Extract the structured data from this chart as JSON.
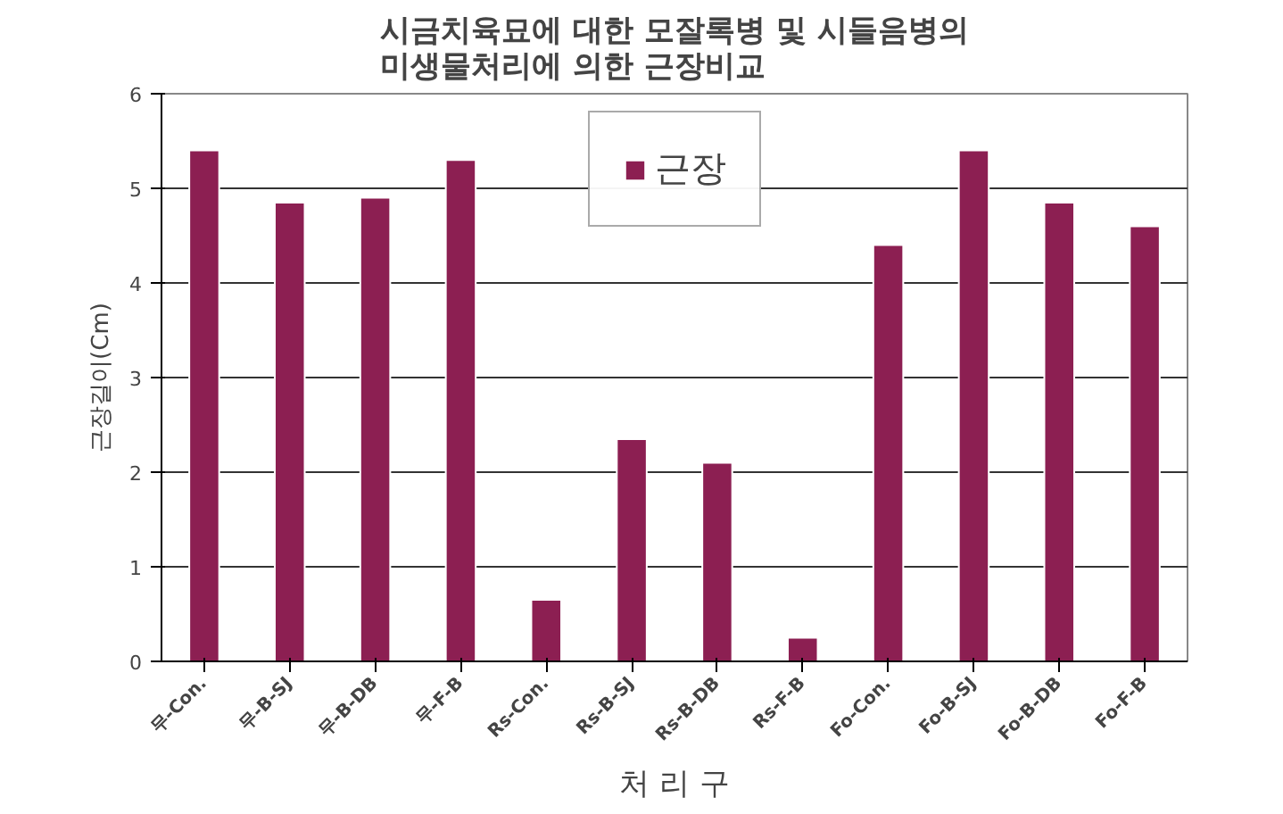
{
  "chart_data": {
    "type": "bar",
    "title": "시금치육묘에 대한 모잘록병 및 시들음병의\n미생물처리에 의한 근장비교",
    "xlabel": "처 리 구",
    "ylabel": "근장길이(Cm)",
    "categories": [
      "무-Con.",
      "무-B-SJ",
      "무-B-DB",
      "무-F-B",
      "Rs-Con.",
      "Rs-B-SJ",
      "Rs-B-DB",
      "Rs-F-B",
      "Fo-Con.",
      "Fo-B-SJ",
      "Fo-B-DB",
      "Fo-F-B"
    ],
    "series": [
      {
        "name": "근장",
        "color": "#8c1f52",
        "values": [
          5.4,
          4.85,
          4.9,
          5.3,
          0.65,
          2.35,
          2.1,
          0.25,
          4.4,
          5.4,
          4.85,
          4.6
        ]
      }
    ],
    "ylim": [
      0,
      6
    ],
    "yticks": [
      0,
      1,
      2,
      3,
      4,
      5,
      6
    ],
    "grid": "y",
    "legend": "top"
  }
}
